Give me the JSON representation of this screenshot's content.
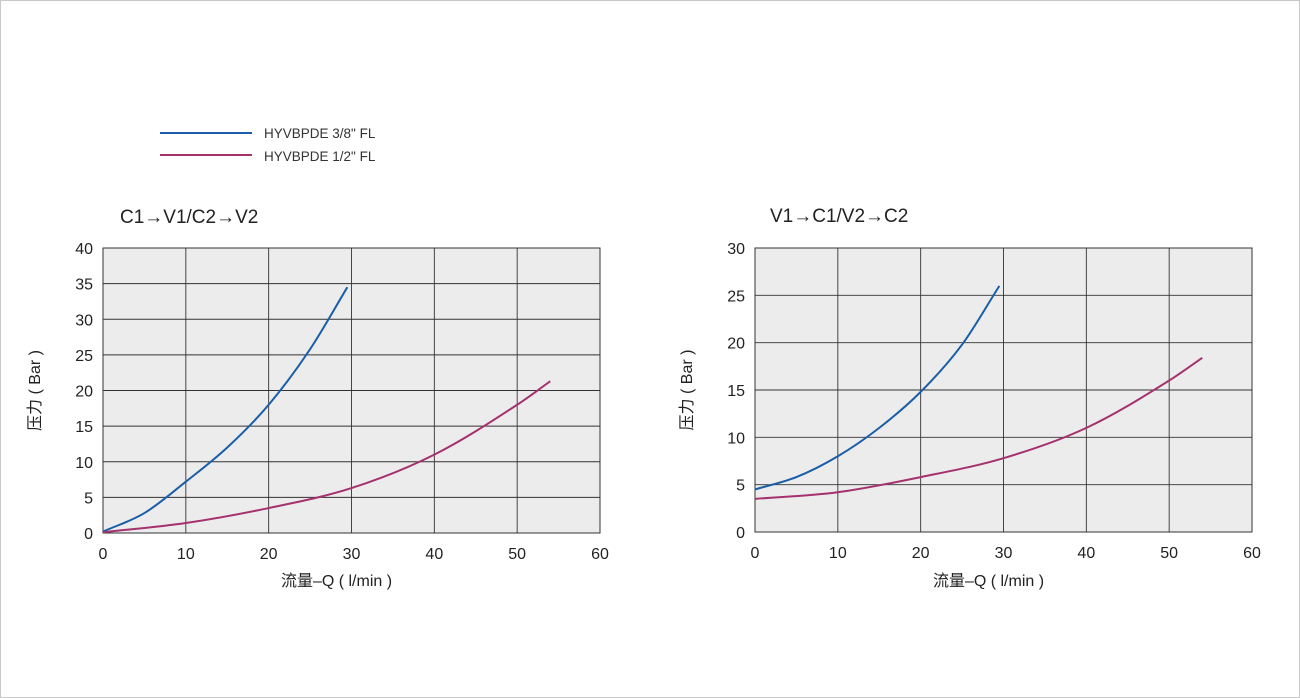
{
  "legend": [
    {
      "name": "HYVBPDE 3/8\" FL",
      "color": "#1a5ea8"
    },
    {
      "name": "HYVBPDE 1/2\" FL",
      "color": "#a5316e"
    }
  ],
  "chart_data": [
    {
      "type": "line",
      "title": "C1→V1/C2→V2",
      "xlabel": "流量–Q ( l/min )",
      "ylabel": "压力 ( Bar )",
      "xlim": [
        0,
        60
      ],
      "ylim": [
        0,
        40
      ],
      "xticks": [
        0,
        10,
        20,
        30,
        40,
        50,
        60
      ],
      "yticks": [
        0,
        5,
        10,
        15,
        20,
        25,
        30,
        35,
        40
      ],
      "grid": true,
      "legend_position": "top-left",
      "series": [
        {
          "name": "HYVBPDE 3/8\" FL",
          "color": "#1a5ea8",
          "x": [
            0,
            5,
            10,
            15,
            20,
            25,
            29.5
          ],
          "y": [
            0.2,
            2.8,
            7.2,
            12.0,
            18.0,
            25.8,
            34.5
          ]
        },
        {
          "name": "HYVBPDE 1/2\" FL",
          "color": "#a5316e",
          "x": [
            0,
            10,
            20,
            30,
            40,
            50,
            54
          ],
          "y": [
            0.1,
            1.4,
            3.5,
            6.3,
            11.0,
            18.0,
            21.3
          ]
        }
      ]
    },
    {
      "type": "line",
      "title": "V1→C1/V2→C2",
      "xlabel": "流量–Q ( l/min )",
      "ylabel": "压力 ( Bar )",
      "xlim": [
        0,
        60
      ],
      "ylim": [
        0,
        30
      ],
      "xticks": [
        0,
        10,
        20,
        30,
        40,
        50,
        60
      ],
      "yticks": [
        0,
        5,
        10,
        15,
        20,
        25,
        30
      ],
      "grid": true,
      "series": [
        {
          "name": "HYVBPDE 3/8\" FL",
          "color": "#1a5ea8",
          "x": [
            0,
            5,
            10,
            15,
            20,
            25,
            29.5
          ],
          "y": [
            4.5,
            5.8,
            8.0,
            11.0,
            14.8,
            19.8,
            26.0
          ]
        },
        {
          "name": "HYVBPDE 1/2\" FL",
          "color": "#a5316e",
          "x": [
            0,
            10,
            20,
            30,
            40,
            50,
            54
          ],
          "y": [
            3.5,
            4.2,
            5.8,
            7.8,
            11.0,
            16.0,
            18.4
          ]
        }
      ]
    }
  ]
}
